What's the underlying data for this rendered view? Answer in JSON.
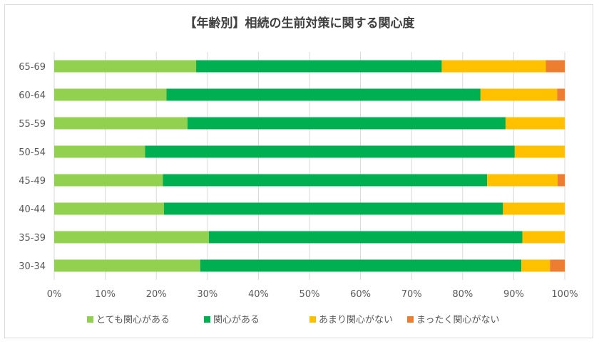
{
  "chart_data": {
    "type": "bar",
    "orientation": "horizontal",
    "stacked": "percent",
    "title": "【年齢別】相続の生前対策に関する関心度",
    "categories": [
      "65-69",
      "60-64",
      "55-59",
      "50-54",
      "45-49",
      "40-44",
      "35-39",
      "30-34"
    ],
    "series": [
      {
        "name": "とても関心がある",
        "color": "#92d050",
        "values": [
          27.8,
          22.0,
          26.1,
          17.8,
          21.3,
          21.5,
          30.3,
          28.6
        ]
      },
      {
        "name": "関心がある",
        "color": "#00b050",
        "values": [
          48.1,
          61.5,
          62.3,
          72.4,
          63.5,
          66.4,
          61.4,
          62.9
        ]
      },
      {
        "name": "あまり関心がない",
        "color": "#ffc000",
        "values": [
          20.4,
          15.0,
          11.6,
          9.8,
          13.8,
          12.1,
          8.3,
          5.6
        ]
      },
      {
        "name": "まったく関心がない",
        "color": "#ed7d31",
        "values": [
          3.7,
          1.5,
          0.0,
          0.0,
          1.4,
          0.0,
          0.0,
          2.9
        ]
      }
    ],
    "xlim": [
      0,
      100
    ],
    "x_ticks": [
      "0%",
      "10%",
      "20%",
      "30%",
      "40%",
      "50%",
      "60%",
      "70%",
      "80%",
      "90%",
      "100%"
    ],
    "grid": true,
    "legend_position": "bottom"
  }
}
